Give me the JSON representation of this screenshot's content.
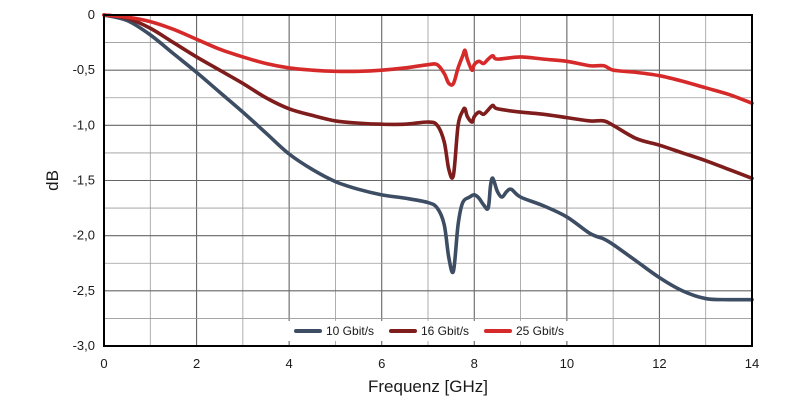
{
  "chart_data": {
    "type": "line",
    "title": "",
    "xlabel": "Frequenz [GHz]",
    "ylabel": "dB",
    "xlim": [
      0,
      14
    ],
    "ylim": [
      -3.0,
      0
    ],
    "xticks": [
      0,
      2,
      4,
      6,
      8,
      10,
      12,
      14
    ],
    "xtick_labels": [
      "0",
      "2",
      "4",
      "6",
      "8",
      "10",
      "12",
      "14"
    ],
    "yticks": [
      0,
      -0.5,
      -1.0,
      -1.5,
      -2.0,
      -2.5,
      -3.0
    ],
    "ytick_labels": [
      "0",
      "-0,5",
      "-1,0",
      "-1,5",
      "-2,0",
      "-2,5",
      "-3,0"
    ],
    "grid": true,
    "legend_position": "bottom-center",
    "series": [
      {
        "name": "10 Gbit/s",
        "color": "#3d4d63",
        "x": [
          0,
          0.5,
          1,
          1.5,
          2,
          2.5,
          3,
          3.5,
          4,
          4.5,
          5,
          5.5,
          6,
          6.5,
          7,
          7.2,
          7.35,
          7.45,
          7.55,
          7.65,
          7.75,
          7.9,
          8.0,
          8.1,
          8.2,
          8.3,
          8.35,
          8.4,
          8.5,
          8.6,
          8.7,
          8.8,
          9.0,
          9.5,
          10,
          10.5,
          10.8,
          11,
          11.5,
          12,
          12.5,
          13,
          13.5,
          14
        ],
        "y": [
          0,
          -0.05,
          -0.18,
          -0.35,
          -0.52,
          -0.7,
          -0.88,
          -1.07,
          -1.26,
          -1.4,
          -1.51,
          -1.58,
          -1.63,
          -1.66,
          -1.7,
          -1.75,
          -1.9,
          -2.2,
          -2.32,
          -1.9,
          -1.7,
          -1.65,
          -1.63,
          -1.66,
          -1.72,
          -1.75,
          -1.55,
          -1.48,
          -1.6,
          -1.65,
          -1.6,
          -1.58,
          -1.65,
          -1.73,
          -1.83,
          -1.98,
          -2.03,
          -2.08,
          -2.23,
          -2.38,
          -2.5,
          -2.57,
          -2.58,
          -2.58
        ]
      },
      {
        "name": "16 Gbit/s",
        "color": "#7f1d1d",
        "x": [
          0,
          0.5,
          1,
          1.5,
          2,
          2.5,
          3,
          3.5,
          4,
          4.5,
          5,
          5.5,
          6,
          6.5,
          7,
          7.2,
          7.35,
          7.45,
          7.55,
          7.65,
          7.75,
          7.8,
          7.85,
          7.95,
          8.0,
          8.1,
          8.2,
          8.3,
          8.4,
          8.5,
          9.0,
          9.5,
          10,
          10.5,
          10.8,
          11,
          11.5,
          12,
          12.5,
          13,
          13.5,
          14
        ],
        "y": [
          0,
          -0.03,
          -0.12,
          -0.25,
          -0.38,
          -0.5,
          -0.62,
          -0.75,
          -0.85,
          -0.91,
          -0.96,
          -0.98,
          -0.99,
          -0.99,
          -0.97,
          -1.0,
          -1.15,
          -1.4,
          -1.45,
          -1.0,
          -0.87,
          -0.85,
          -0.92,
          -0.97,
          -0.92,
          -0.88,
          -0.9,
          -0.86,
          -0.82,
          -0.85,
          -0.88,
          -0.9,
          -0.93,
          -0.96,
          -0.96,
          -1.0,
          -1.12,
          -1.18,
          -1.25,
          -1.32,
          -1.4,
          -1.48
        ]
      },
      {
        "name": "25 Gbit/s",
        "color": "#d62a2a",
        "x": [
          0,
          0.5,
          1,
          1.5,
          2,
          2.5,
          3,
          3.5,
          4,
          4.5,
          5,
          5.5,
          6,
          6.5,
          7,
          7.2,
          7.35,
          7.45,
          7.55,
          7.65,
          7.75,
          7.8,
          7.85,
          7.95,
          8.0,
          8.1,
          8.2,
          8.3,
          8.4,
          8.5,
          9.0,
          9.5,
          10,
          10.5,
          10.8,
          11,
          11.5,
          12,
          12.5,
          13,
          13.5,
          14
        ],
        "y": [
          0,
          -0.02,
          -0.06,
          -0.13,
          -0.22,
          -0.31,
          -0.38,
          -0.44,
          -0.48,
          -0.5,
          -0.51,
          -0.51,
          -0.5,
          -0.48,
          -0.45,
          -0.45,
          -0.53,
          -0.62,
          -0.62,
          -0.48,
          -0.37,
          -0.32,
          -0.4,
          -0.5,
          -0.45,
          -0.42,
          -0.44,
          -0.4,
          -0.37,
          -0.4,
          -0.38,
          -0.4,
          -0.42,
          -0.46,
          -0.46,
          -0.5,
          -0.52,
          -0.55,
          -0.6,
          -0.66,
          -0.72,
          -0.8
        ]
      }
    ]
  }
}
